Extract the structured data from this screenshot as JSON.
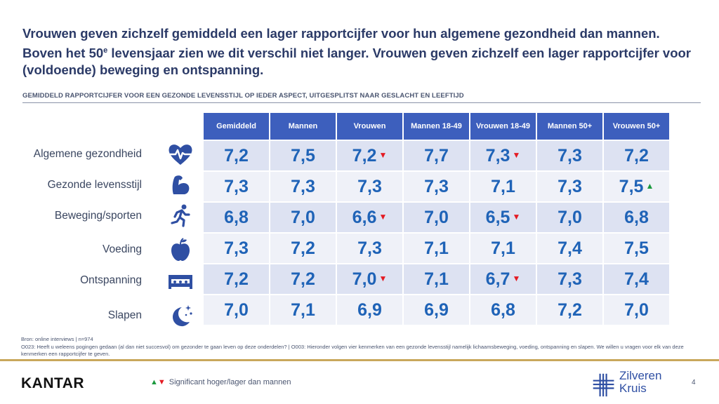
{
  "headline": {
    "part1": "Vrouwen geven zichzelf gemiddeld een lager rapportcijfer voor hun algemene gezondheid dan mannen. Boven het 50",
    "sup": "e",
    "part2": " levensjaar zien we dit verschil niet langer. Vrouwen geven zichzelf een lager rapportcijfer voor (voldoende) beweging en ontspanning."
  },
  "subtitle": "GEMIDDELD RAPPORTCIJFER VOOR EEN GEZONDE LEVENSSTIJL OP IEDER ASPECT, UITGESPLITST NAAR GESLACHT EN LEEFTIJD",
  "table": {
    "columns": [
      "Gemiddeld",
      "Mannen",
      "Vrouwen",
      "Mannen 18-49",
      "Vrouwen 18-49",
      "Mannen 50+",
      "Vrouwen 50+"
    ],
    "rows": [
      {
        "label": "Algemene gezondheid",
        "icon": "heart-pulse-icon",
        "values": [
          "7,2",
          "7,5",
          "7,2",
          "7,7",
          "7,3",
          "7,3",
          "7,2"
        ],
        "markers": [
          "",
          "",
          "down",
          "",
          "down",
          "",
          ""
        ]
      },
      {
        "label": "Gezonde levensstijl",
        "icon": "flexed-arm-icon",
        "values": [
          "7,3",
          "7,3",
          "7,3",
          "7,3",
          "7,1",
          "7,3",
          "7,5"
        ],
        "markers": [
          "",
          "",
          "",
          "",
          "",
          "",
          "up"
        ]
      },
      {
        "label": "Beweging/sporten",
        "icon": "runner-icon",
        "values": [
          "6,8",
          "7,0",
          "6,6",
          "7,0",
          "6,5",
          "7,0",
          "6,8"
        ],
        "markers": [
          "",
          "",
          "down",
          "",
          "down",
          "",
          ""
        ]
      },
      {
        "label": "Voeding",
        "icon": "apple-icon",
        "values": [
          "7,3",
          "7,2",
          "7,3",
          "7,1",
          "7,1",
          "7,4",
          "7,5"
        ],
        "markers": [
          "",
          "",
          "",
          "",
          "",
          "",
          ""
        ]
      },
      {
        "label": "Ontspanning",
        "icon": "sofa-icon",
        "values": [
          "7,2",
          "7,2",
          "7,0",
          "7,1",
          "6,7",
          "7,3",
          "7,4"
        ],
        "markers": [
          "",
          "",
          "down",
          "",
          "down",
          "",
          ""
        ]
      },
      {
        "label": "Slapen",
        "icon": "moon-stars-icon",
        "values": [
          "7,0",
          "7,1",
          "6,9",
          "6,9",
          "6,8",
          "7,2",
          "7,0"
        ],
        "markers": [
          "",
          "",
          "",
          "",
          "",
          "",
          ""
        ]
      }
    ]
  },
  "source": {
    "line1": "Bron: online interviews | n=974",
    "line2": "O023: Heeft u weleens pogingen gedaan (al dan niet succesvol) om gezonder te gaan leven op deze onderdelen? | O003: Hieronder volgen vier kenmerken van een gezonde levensstijl namelijk lichaamsbeweging, voeding, ontspanning en slapen. We willen u vragen voor elk van deze kenmerken een rapportcijfer te geven."
  },
  "footer": {
    "brand": "KANTAR",
    "legend": "Significant hoger/lager dan mannen",
    "logo_line1": "Zilveren",
    "logo_line2": "Kruis",
    "page": "4"
  },
  "colors": {
    "header_blue": "#3d5fbd",
    "value_blue": "#1f63b7",
    "down_red": "#e41b23",
    "up_green": "#1c9a3f",
    "gold_rule": "#c9a85c"
  }
}
